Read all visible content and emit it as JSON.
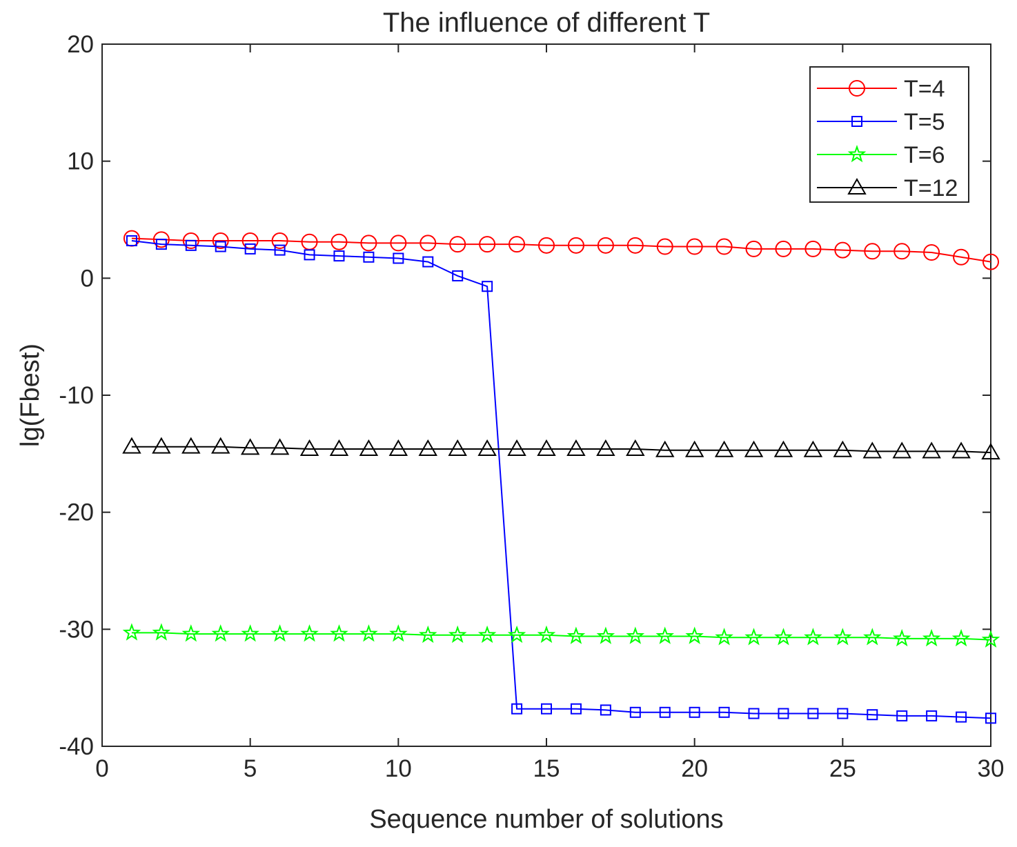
{
  "chart_data": {
    "type": "line",
    "title": "The influence of different T",
    "xlabel": "Sequence number of solutions",
    "ylabel": "lg(Fbest)",
    "xlim": [
      0,
      30
    ],
    "ylim": [
      -40,
      20
    ],
    "xticks": [
      0,
      5,
      10,
      15,
      20,
      25,
      30
    ],
    "yticks": [
      -40,
      -30,
      -20,
      -10,
      0,
      10,
      20
    ],
    "grid": false,
    "legend_position": "top-right",
    "x": [
      1,
      2,
      3,
      4,
      5,
      6,
      7,
      8,
      9,
      10,
      11,
      12,
      13,
      14,
      15,
      16,
      17,
      18,
      19,
      20,
      21,
      22,
      23,
      24,
      25,
      26,
      27,
      28,
      29,
      30
    ],
    "series": [
      {
        "name": "T=4",
        "color": "#ff0000",
        "marker": "circle",
        "values": [
          3.4,
          3.3,
          3.2,
          3.2,
          3.2,
          3.2,
          3.1,
          3.1,
          3.0,
          3.0,
          3.0,
          2.9,
          2.9,
          2.9,
          2.8,
          2.8,
          2.8,
          2.8,
          2.7,
          2.7,
          2.7,
          2.5,
          2.5,
          2.5,
          2.4,
          2.3,
          2.3,
          2.2,
          1.8,
          1.4
        ]
      },
      {
        "name": "T=5",
        "color": "#0000ff",
        "marker": "square",
        "values": [
          3.2,
          2.9,
          2.8,
          2.7,
          2.5,
          2.4,
          2.0,
          1.9,
          1.8,
          1.7,
          1.4,
          0.2,
          -0.7,
          -36.8,
          -36.8,
          -36.8,
          -36.9,
          -37.1,
          -37.1,
          -37.1,
          -37.1,
          -37.2,
          -37.2,
          -37.2,
          -37.2,
          -37.3,
          -37.4,
          -37.4,
          -37.5,
          -37.6
        ]
      },
      {
        "name": "T=6",
        "color": "#00ff00",
        "marker": "star",
        "values": [
          -30.3,
          -30.3,
          -30.4,
          -30.4,
          -30.4,
          -30.4,
          -30.4,
          -30.4,
          -30.4,
          -30.4,
          -30.5,
          -30.5,
          -30.5,
          -30.5,
          -30.5,
          -30.6,
          -30.6,
          -30.6,
          -30.6,
          -30.6,
          -30.7,
          -30.7,
          -30.7,
          -30.7,
          -30.7,
          -30.7,
          -30.8,
          -30.8,
          -30.8,
          -30.9
        ]
      },
      {
        "name": "T=12",
        "color": "#000000",
        "marker": "triangle",
        "values": [
          -14.4,
          -14.4,
          -14.4,
          -14.4,
          -14.5,
          -14.5,
          -14.6,
          -14.6,
          -14.6,
          -14.6,
          -14.6,
          -14.6,
          -14.6,
          -14.6,
          -14.6,
          -14.6,
          -14.6,
          -14.6,
          -14.7,
          -14.7,
          -14.7,
          -14.7,
          -14.7,
          -14.7,
          -14.7,
          -14.8,
          -14.8,
          -14.8,
          -14.8,
          -14.9
        ]
      }
    ]
  }
}
